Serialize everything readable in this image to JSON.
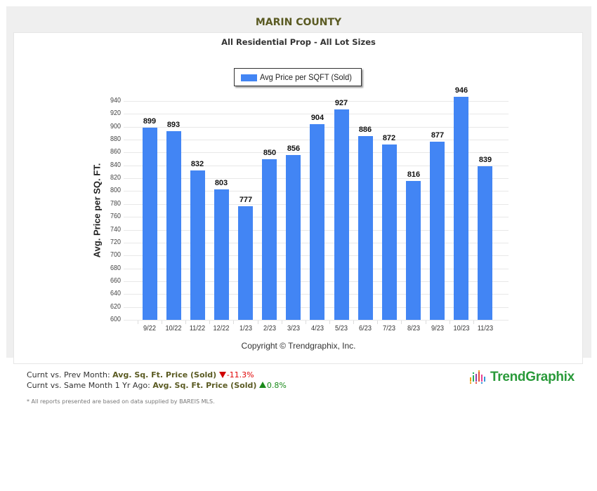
{
  "header": {
    "title": "MARIN COUNTY",
    "subtitle": "All Residential Prop - All Lot Sizes"
  },
  "legend": {
    "label": "Avg Price per SQFT (Sold)",
    "color": "#4285f4"
  },
  "copyright": "Copyright © Trendgraphix, Inc.",
  "stats": {
    "row1": {
      "prefix": "Curnt vs. Prev Month: ",
      "metric": "Avg. Sq. Ft. Price (Sold)",
      "direction": "down",
      "change": "-11.3%",
      "color": "#e00000"
    },
    "row2": {
      "prefix": "Curnt vs. Same Month 1 Yr Ago: ",
      "metric": "Avg. Sq. Ft. Price (Sold)",
      "direction": "up",
      "change": "0.8%",
      "color": "#1a8a1a"
    }
  },
  "footnote": "* All reports presented are based on data supplied by BAREIS MLS.",
  "logo": {
    "text": "TrendGraphix"
  },
  "chart_data": {
    "type": "bar",
    "title": "MARIN COUNTY",
    "subtitle": "All Residential Prop - All Lot Sizes",
    "xlabel": "",
    "ylabel": "Avg. Price per SQ. FT.",
    "ylim": [
      600,
      940
    ],
    "yticks": [
      600,
      620,
      640,
      660,
      680,
      700,
      720,
      740,
      760,
      780,
      800,
      820,
      840,
      860,
      880,
      900,
      920,
      940
    ],
    "grid": true,
    "legend_position": "top",
    "categories": [
      "9/22",
      "10/22",
      "11/22",
      "12/22",
      "1/23",
      "2/23",
      "3/23",
      "4/23",
      "5/23",
      "6/23",
      "7/23",
      "8/23",
      "9/23",
      "10/23",
      "11/23"
    ],
    "series": [
      {
        "name": "Avg Price per SQFT (Sold)",
        "color": "#4285f4",
        "values": [
          899,
          893,
          832,
          803,
          777,
          850,
          856,
          904,
          927,
          886,
          872,
          816,
          877,
          946,
          839
        ]
      }
    ],
    "annotations": [
      "Copyright © Trendgraphix, Inc."
    ]
  }
}
